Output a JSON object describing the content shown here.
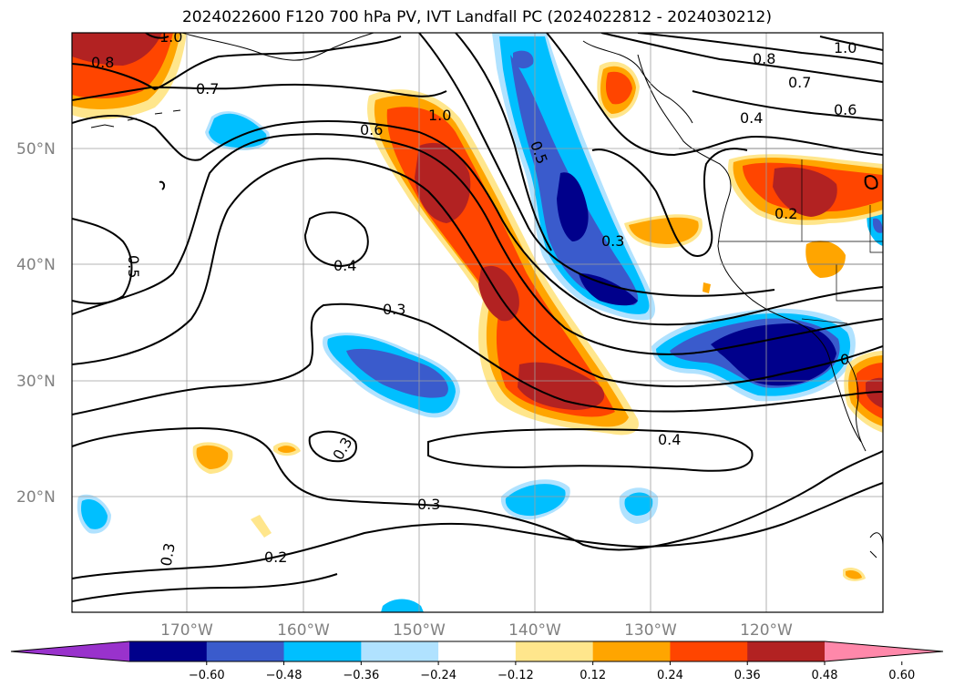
{
  "title": "2024022600 F120 700 hPa PV, IVT Landfall PC (2024022812 - 2024030212)",
  "map": {
    "projection": "lat-lon",
    "lon_range": [
      "180°",
      "110°W"
    ],
    "lat_range": [
      "10°N",
      "60°N"
    ],
    "gridlines": true,
    "lat_labels": [
      "50°N",
      "40°N",
      "30°N",
      "20°N"
    ],
    "lon_labels": [
      "170°W",
      "160°W",
      "150°W",
      "140°W",
      "130°W",
      "120°W"
    ],
    "contour_labels": [
      "1.0",
      "0.8",
      "0.7",
      "0.6",
      "1.0",
      "0.5",
      "0.8",
      "0.7",
      "0.6",
      "0.4",
      "1.0",
      "0.2",
      "0.5",
      "0.3",
      "0.4",
      "0.3",
      "0.3",
      "0.4",
      "0.3",
      "0.2",
      "0.3",
      "0"
    ],
    "shading_variable": "IVT Landfall PC",
    "contour_variable": "700 hPa PV"
  },
  "colorbar": {
    "tick_labels": [
      "−0.60",
      "−0.48",
      "−0.36",
      "−0.24",
      "−0.12",
      "0.12",
      "0.24",
      "0.36",
      "0.48",
      "0.60"
    ],
    "colors": [
      "#9932cc",
      "#00008b",
      "#3a5bcc",
      "#00bfff",
      "#b0e2ff",
      "#ffffff",
      "#ffe68c",
      "#ffa500",
      "#ff4500",
      "#b22222",
      "#ff88aa"
    ],
    "extend": "both"
  }
}
